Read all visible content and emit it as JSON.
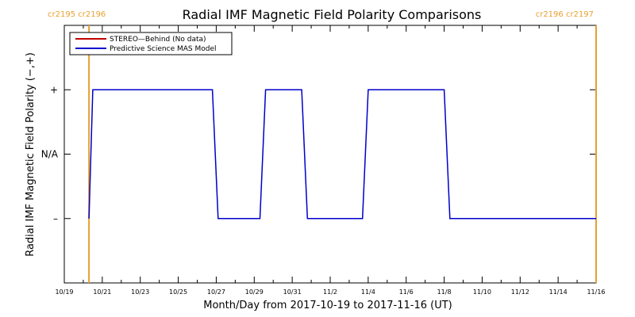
{
  "chart_data": {
    "type": "line",
    "title": "Radial IMF Magnetic Field Polarity Comparisons",
    "xlabel": "Month/Day from 2017-10-19 to 2017-11-16 (UT)",
    "ylabel": "Radial IMF Magnetic Field Polarity (−,+)",
    "x_domain_days": [
      0,
      28
    ],
    "x_tick_labels": [
      "10/19",
      "10/21",
      "10/23",
      "10/25",
      "10/27",
      "10/29",
      "10/31",
      "11/2",
      "11/4",
      "11/6",
      "11/8",
      "11/10",
      "11/12",
      "11/14",
      "11/16"
    ],
    "y_ticks": [
      {
        "label": "+",
        "value": 1
      },
      {
        "label": "N/A",
        "value": 0
      },
      {
        "label": "–",
        "value": -1
      }
    ],
    "ylim": [
      -2,
      2
    ],
    "carrington_markers": [
      {
        "day": 1.3,
        "label": "cr2195 cr2196",
        "color": "#E8A030",
        "align": "left"
      },
      {
        "day": 28.0,
        "label": "cr2196 cr2197",
        "color": "#E8A030",
        "align": "right"
      }
    ],
    "legend": [
      {
        "label": "STEREO—Behind (No data)",
        "color": "#c00000"
      },
      {
        "label": "Predictive Science MAS Model",
        "color": "#0000cc"
      }
    ],
    "series": [
      {
        "name": "Predictive Science MAS Model",
        "color": "#0000cc",
        "x": [
          1.3,
          1.5,
          7.8,
          8.1,
          10.3,
          10.6,
          12.5,
          12.8,
          15.7,
          16.0,
          20.0,
          20.3,
          28.0
        ],
        "y": [
          -1,
          1,
          1,
          -1,
          -1,
          1,
          1,
          -1,
          -1,
          1,
          1,
          -1,
          -1
        ]
      }
    ]
  }
}
